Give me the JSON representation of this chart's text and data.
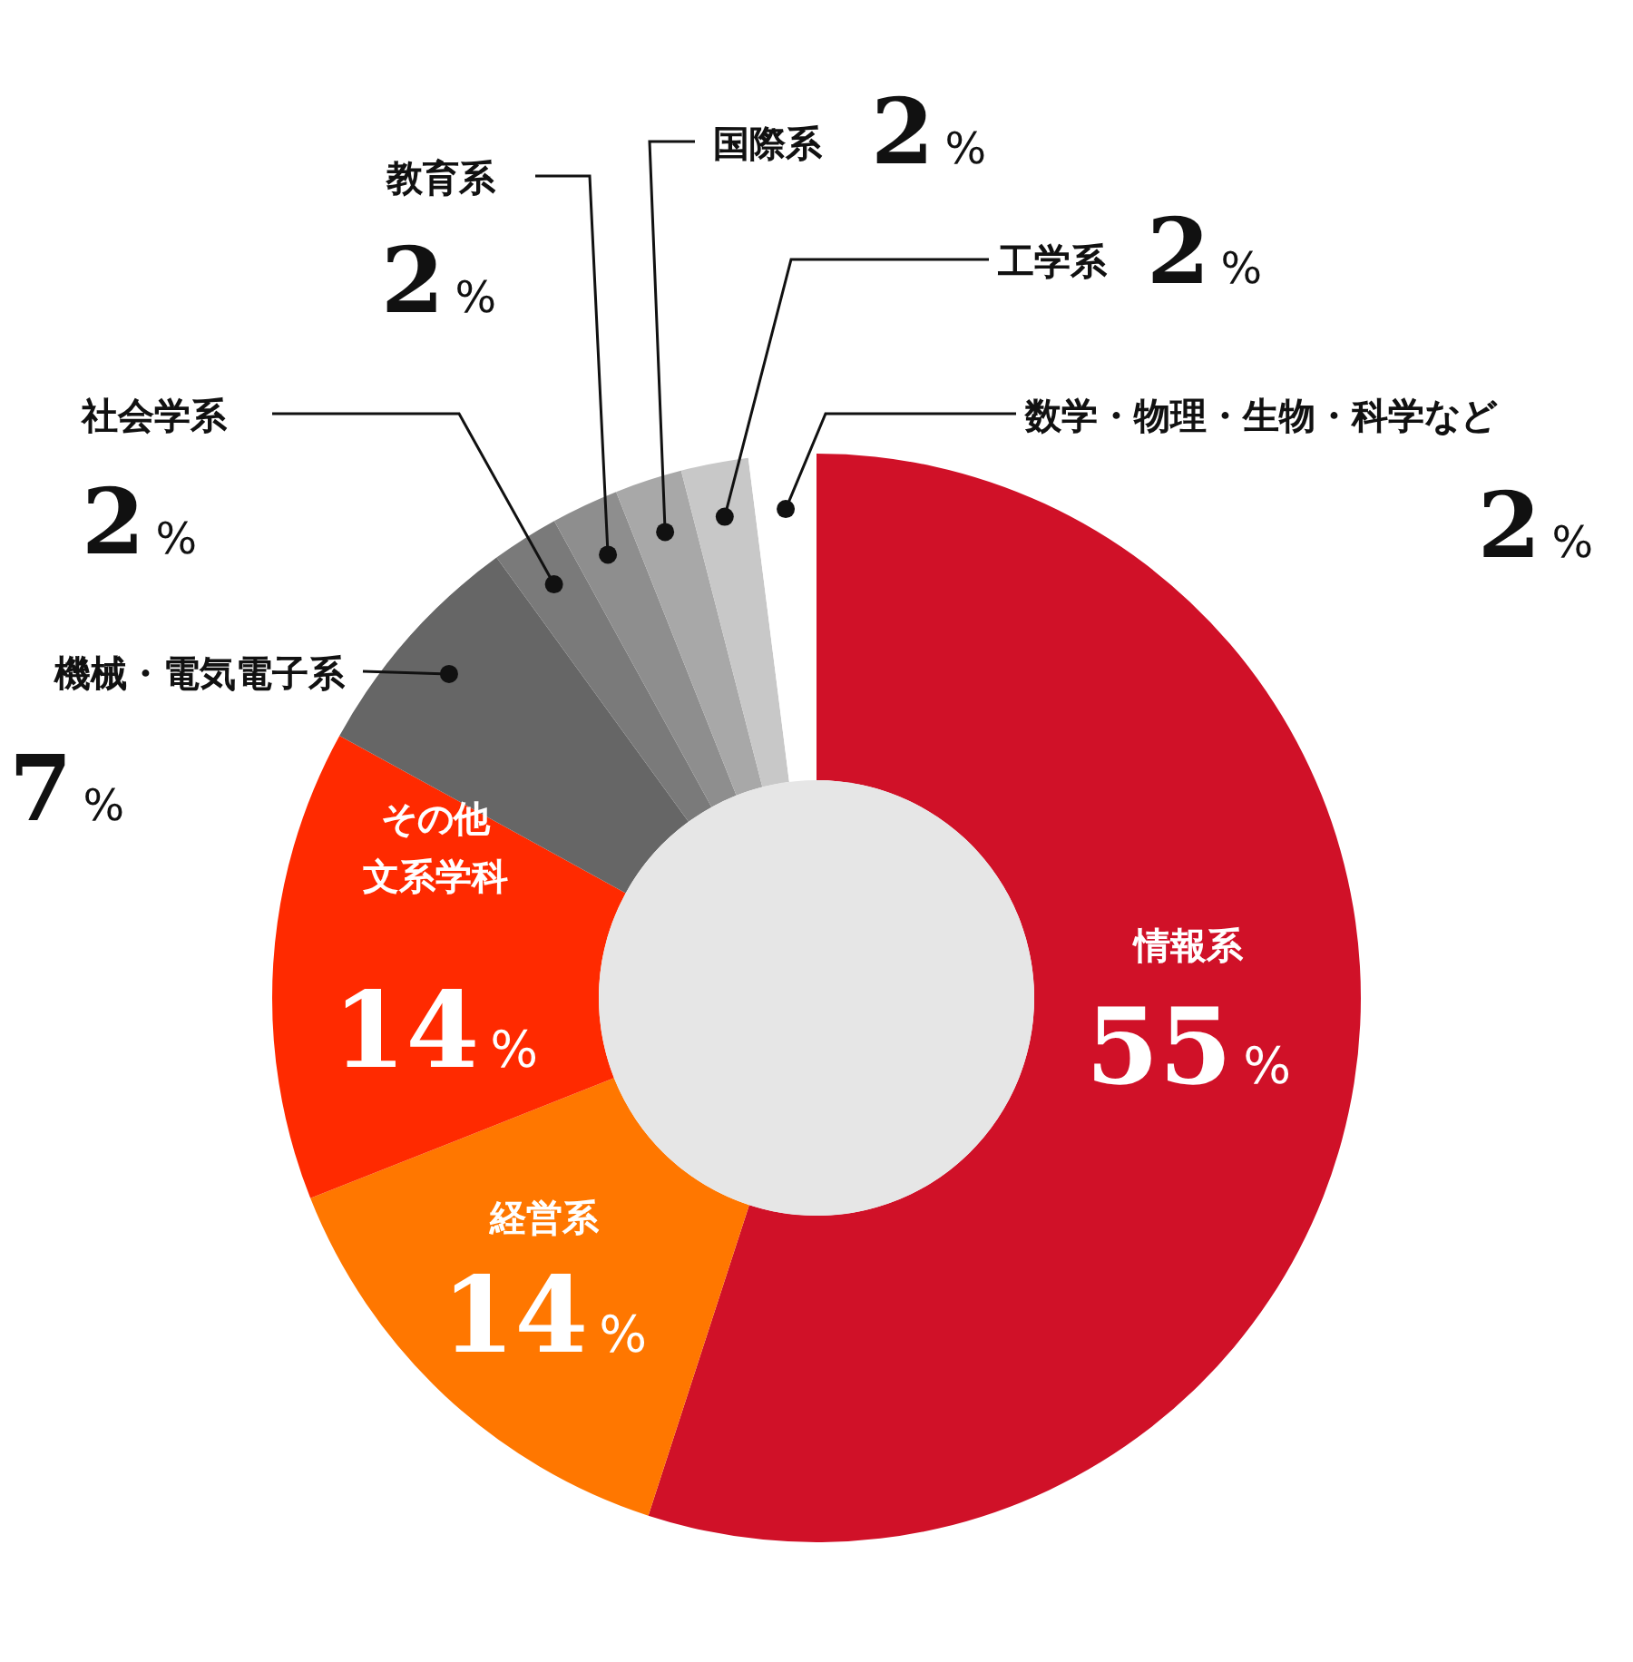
{
  "chart_data": {
    "type": "donut",
    "categories": [
      "情報系",
      "経営系",
      "その他文系学科",
      "機械・電気電子系",
      "社会学系",
      "教育系",
      "国際系",
      "工学系",
      "数学・物理・生物・科学など"
    ],
    "values": [
      55,
      14,
      14,
      7,
      2,
      2,
      2,
      2,
      2
    ],
    "colors": [
      "#d01128",
      "#ff7700",
      "#ff2a00",
      "#666666",
      "#7a7a7a",
      "#8e8e8e",
      "#a8a8a8",
      "#c8c8c8",
      "#ffffff"
    ],
    "value_labels": [
      "55%",
      "14%",
      "14%",
      "7%",
      "2%",
      "2%",
      "2%",
      "2%",
      "2%"
    ]
  }
}
